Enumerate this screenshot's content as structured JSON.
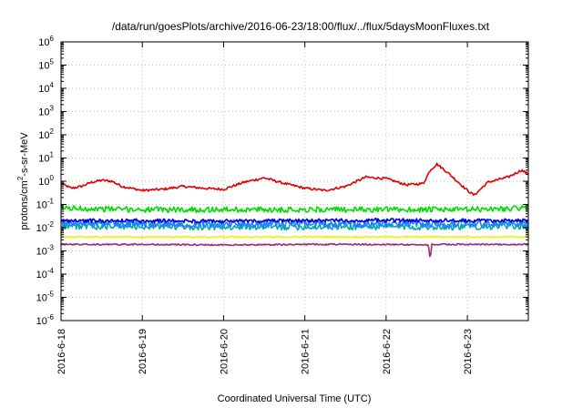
{
  "chart_data": {
    "type": "line",
    "title": "/data/run/goesPlots/archive/2016-06-23/18:00/flux/../flux/5daysMoonFluxes.txt",
    "xlabel": "Coordinated Universal Time (UTC)",
    "ylabel": {
      "prefix": "protons/cm",
      "sup": "2",
      "suffix": "-s-sr-MeV"
    },
    "y_scale": "log",
    "ylim": [
      1e-06,
      1000000.0
    ],
    "y_ticks": [
      {
        "value": 1e-06,
        "base": "10",
        "exp": "-6"
      },
      {
        "value": 1e-05,
        "base": "10",
        "exp": "-5"
      },
      {
        "value": 0.0001,
        "base": "10",
        "exp": "-4"
      },
      {
        "value": 0.001,
        "base": "10",
        "exp": "-3"
      },
      {
        "value": 0.01,
        "base": "10",
        "exp": "-2"
      },
      {
        "value": 0.1,
        "base": "10",
        "exp": "-1"
      },
      {
        "value": 1.0,
        "base": "10",
        "exp": "0"
      },
      {
        "value": 10.0,
        "base": "10",
        "exp": "1"
      },
      {
        "value": 100.0,
        "base": "10",
        "exp": "2"
      },
      {
        "value": 1000.0,
        "base": "10",
        "exp": "3"
      },
      {
        "value": 10000.0,
        "base": "10",
        "exp": "4"
      },
      {
        "value": 100000.0,
        "base": "10",
        "exp": "5"
      },
      {
        "value": 1000000.0,
        "base": "10",
        "exp": "6"
      }
    ],
    "xlim": [
      "2016-06-18T00:00",
      "2016-06-23T18:00"
    ],
    "x_ticks": [
      {
        "date": "2016-06-18T00:00",
        "label": "2016-6-18"
      },
      {
        "date": "2016-06-19T00:00",
        "label": "2016-6-19"
      },
      {
        "date": "2016-06-20T00:00",
        "label": "2016-6-20"
      },
      {
        "date": "2016-06-21T00:00",
        "label": "2016-6-21"
      },
      {
        "date": "2016-06-22T00:00",
        "label": "2016-6-22"
      },
      {
        "date": "2016-06-23T00:00",
        "label": "2016-6-23"
      }
    ],
    "grid": true,
    "series": [
      {
        "color": "#e00000",
        "noise": 0.05,
        "points": [
          [
            "2016-06-18T00:00",
            0.8
          ],
          [
            "2016-06-18T03:00",
            0.5
          ],
          [
            "2016-06-18T06:00",
            0.6
          ],
          [
            "2016-06-18T09:00",
            0.9
          ],
          [
            "2016-06-18T12:00",
            1.1
          ],
          [
            "2016-06-18T15:00",
            1.0
          ],
          [
            "2016-06-18T18:00",
            0.6
          ],
          [
            "2016-06-19T00:00",
            0.4
          ],
          [
            "2016-06-19T06:00",
            0.45
          ],
          [
            "2016-06-19T12:00",
            0.6
          ],
          [
            "2016-06-19T18:00",
            0.5
          ],
          [
            "2016-06-20T00:00",
            0.45
          ],
          [
            "2016-06-20T06:00",
            0.9
          ],
          [
            "2016-06-20T12:00",
            1.4
          ],
          [
            "2016-06-20T18:00",
            0.8
          ],
          [
            "2016-06-21T00:00",
            0.5
          ],
          [
            "2016-06-21T06:00",
            0.4
          ],
          [
            "2016-06-21T12:00",
            0.6
          ],
          [
            "2016-06-21T18:00",
            1.5
          ],
          [
            "2016-06-22T00:00",
            1.3
          ],
          [
            "2016-06-22T06:00",
            0.7
          ],
          [
            "2016-06-22T11:00",
            0.8
          ],
          [
            "2016-06-22T13:00",
            3.0
          ],
          [
            "2016-06-22T15:00",
            5.5
          ],
          [
            "2016-06-22T18:00",
            2.5
          ],
          [
            "2016-06-23T00:00",
            0.4
          ],
          [
            "2016-06-23T02:00",
            0.25
          ],
          [
            "2016-06-23T06:00",
            0.9
          ],
          [
            "2016-06-23T12:00",
            1.5
          ],
          [
            "2016-06-23T16:00",
            3.0
          ],
          [
            "2016-06-23T18:00",
            2.0
          ]
        ]
      },
      {
        "color": "#00dd00",
        "noise": 0.12,
        "points": [
          [
            "2016-06-18T00:00",
            0.07
          ],
          [
            "2016-06-19T00:00",
            0.06
          ],
          [
            "2016-06-20T00:00",
            0.06
          ],
          [
            "2016-06-21T00:00",
            0.06
          ],
          [
            "2016-06-22T00:00",
            0.06
          ],
          [
            "2016-06-23T00:00",
            0.06
          ],
          [
            "2016-06-23T18:00",
            0.07
          ]
        ]
      },
      {
        "color": "#00aaaa",
        "noise": 0.14,
        "points": [
          [
            "2016-06-18T00:00",
            0.012
          ],
          [
            "2016-06-19T00:00",
            0.011
          ],
          [
            "2016-06-20T00:00",
            0.011
          ],
          [
            "2016-06-21T00:00",
            0.011
          ],
          [
            "2016-06-22T00:00",
            0.011
          ],
          [
            "2016-06-23T00:00",
            0.011
          ],
          [
            "2016-06-23T18:00",
            0.012
          ]
        ]
      },
      {
        "color": "#1e7fff",
        "noise": 0.16,
        "points": [
          [
            "2016-06-18T00:00",
            0.016
          ],
          [
            "2016-06-19T00:00",
            0.015
          ],
          [
            "2016-06-20T00:00",
            0.015
          ],
          [
            "2016-06-21T00:00",
            0.015
          ],
          [
            "2016-06-22T00:00",
            0.015
          ],
          [
            "2016-06-23T00:00",
            0.015
          ],
          [
            "2016-06-23T18:00",
            0.016
          ]
        ]
      },
      {
        "color": "#0000dd",
        "noise": 0.08,
        "points": [
          [
            "2016-06-18T00:00",
            0.02
          ],
          [
            "2016-06-19T00:00",
            0.02
          ],
          [
            "2016-06-20T00:00",
            0.019
          ],
          [
            "2016-06-21T00:00",
            0.02
          ],
          [
            "2016-06-22T00:00",
            0.021
          ],
          [
            "2016-06-23T00:00",
            0.02
          ],
          [
            "2016-06-23T18:00",
            0.02
          ]
        ]
      },
      {
        "color": "#f0f000",
        "noise": 0.03,
        "points": [
          [
            "2016-06-18T00:00",
            0.004
          ],
          [
            "2016-06-19T00:00",
            0.004
          ],
          [
            "2016-06-20T00:00",
            0.004
          ],
          [
            "2016-06-21T00:00",
            0.004
          ],
          [
            "2016-06-22T00:00",
            0.004
          ],
          [
            "2016-06-23T00:00",
            0.004
          ],
          [
            "2016-06-23T18:00",
            0.004
          ]
        ]
      },
      {
        "color": "#9b2c6e",
        "noise": 0.03,
        "points": [
          [
            "2016-06-18T00:00",
            0.0019
          ],
          [
            "2016-06-19T00:00",
            0.0019
          ],
          [
            "2016-06-20T00:00",
            0.0018
          ],
          [
            "2016-06-21T00:00",
            0.0019
          ],
          [
            "2016-06-22T00:00",
            0.0019
          ],
          [
            "2016-06-22T12:30",
            0.0018
          ],
          [
            "2016-06-22T13:00",
            0.0004
          ],
          [
            "2016-06-22T13:30",
            0.0019
          ],
          [
            "2016-06-23T00:00",
            0.0019
          ],
          [
            "2016-06-23T18:00",
            0.0019
          ]
        ]
      }
    ]
  }
}
